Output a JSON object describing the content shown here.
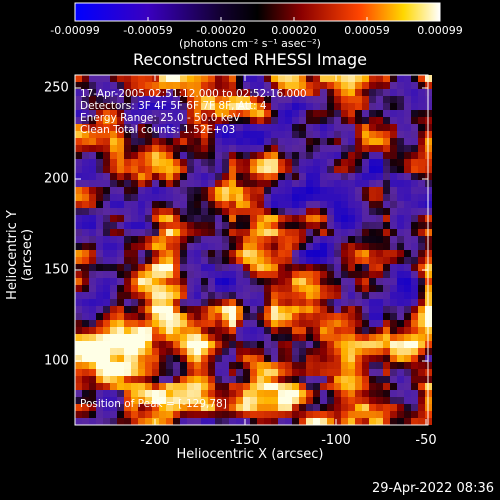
{
  "colorbar": {
    "ticks": [
      "-0.00099",
      "-0.00059",
      "-0.00020",
      "0.00020",
      "0.00059",
      "0.00099"
    ],
    "units": "(photons cm⁻² s⁻¹ asec⁻²)",
    "colors": [
      "#0000ff",
      "#4b0082",
      "#000000",
      "#8b0000",
      "#ff4500",
      "#ffd700",
      "#ffffff"
    ]
  },
  "title": "Reconstructed RHESSI Image",
  "info": {
    "line1": "17-Apr-2005 02:51:12.000 to 02:52:16.000",
    "line2": "Detectors: 3F 4F 5F 6F 7F 8F, Att: 4",
    "line3": "Energy Range: 25.0 - 50.0 keV",
    "line4": "Clean     Total counts: 1.52E+03"
  },
  "peak_label": "Position of Peak = [-129,78]",
  "axes": {
    "xlabel": "Heliocentric X (arcsec)",
    "ylabel": "Heliocentric Y (arcsec)",
    "xticks": [
      "-200",
      "-150",
      "-100",
      "-50"
    ],
    "yticks": [
      "250",
      "200",
      "150",
      "100"
    ],
    "xlim": [
      -247,
      -50
    ],
    "ylim": [
      65,
      262
    ]
  },
  "timestamp": "29-Apr-2022 08:36"
}
